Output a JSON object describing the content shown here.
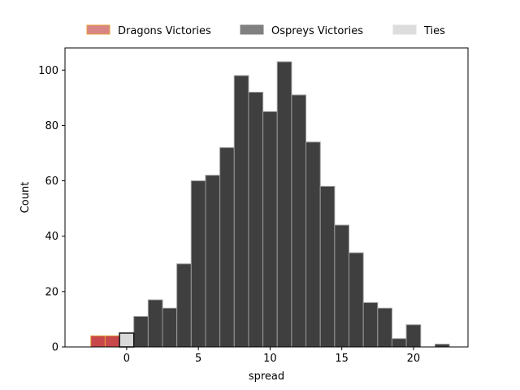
{
  "chart_data": {
    "type": "bar",
    "xlabel": "spread",
    "ylabel": "Count",
    "xlim": [
      -4.3,
      23.8
    ],
    "ylim": [
      0,
      108
    ],
    "xticks": [
      0,
      5,
      10,
      15,
      20
    ],
    "yticks": [
      0,
      20,
      40,
      60,
      80,
      100
    ],
    "bin_width": 1,
    "legend_position": "top-center, outside plot",
    "series": [
      {
        "name": "Dragons Victories",
        "color": "#c8474a",
        "edge_color": "#e6a03a",
        "bins": [
          {
            "x0": -2.5,
            "x1": -1.5,
            "count": 4
          },
          {
            "x0": -1.5,
            "x1": -0.5,
            "count": 4
          }
        ]
      },
      {
        "name": "Ospreys Victories",
        "color": "#3f3f3f",
        "edge_color": "#9a9a9a",
        "bins": [
          {
            "x0": 0.5,
            "x1": 1.5,
            "count": 11
          },
          {
            "x0": 1.5,
            "x1": 2.5,
            "count": 17
          },
          {
            "x0": 2.5,
            "x1": 3.5,
            "count": 14
          },
          {
            "x0": 3.5,
            "x1": 4.5,
            "count": 30
          },
          {
            "x0": 4.5,
            "x1": 5.5,
            "count": 60
          },
          {
            "x0": 5.5,
            "x1": 6.5,
            "count": 62
          },
          {
            "x0": 6.5,
            "x1": 7.5,
            "count": 72
          },
          {
            "x0": 7.5,
            "x1": 8.5,
            "count": 98
          },
          {
            "x0": 8.5,
            "x1": 9.5,
            "count": 92
          },
          {
            "x0": 9.5,
            "x1": 10.5,
            "count": 85
          },
          {
            "x0": 10.5,
            "x1": 11.5,
            "count": 103
          },
          {
            "x0": 11.5,
            "x1": 12.5,
            "count": 91
          },
          {
            "x0": 12.5,
            "x1": 13.5,
            "count": 74
          },
          {
            "x0": 13.5,
            "x1": 14.5,
            "count": 58
          },
          {
            "x0": 14.5,
            "x1": 15.5,
            "count": 44
          },
          {
            "x0": 15.5,
            "x1": 16.5,
            "count": 34
          },
          {
            "x0": 16.5,
            "x1": 17.5,
            "count": 16
          },
          {
            "x0": 17.5,
            "x1": 18.5,
            "count": 14
          },
          {
            "x0": 18.5,
            "x1": 19.5,
            "count": 3
          },
          {
            "x0": 19.5,
            "x1": 20.5,
            "count": 8
          },
          {
            "x0": 21.5,
            "x1": 22.5,
            "count": 1
          }
        ]
      },
      {
        "name": "Ties",
        "color": "#d9d9d9",
        "edge_color": "#111111",
        "bins": [
          {
            "x0": -0.5,
            "x1": 0.5,
            "count": 5
          }
        ]
      }
    ],
    "legend": [
      {
        "label": "Dragons Victories",
        "color": "#d98585",
        "edge": "#e6a03a"
      },
      {
        "label": "Ospreys Victories",
        "color": "#808080",
        "edge": "#808080"
      },
      {
        "label": "Ties",
        "color": "#dddddd",
        "edge": "#dddddd"
      }
    ]
  }
}
